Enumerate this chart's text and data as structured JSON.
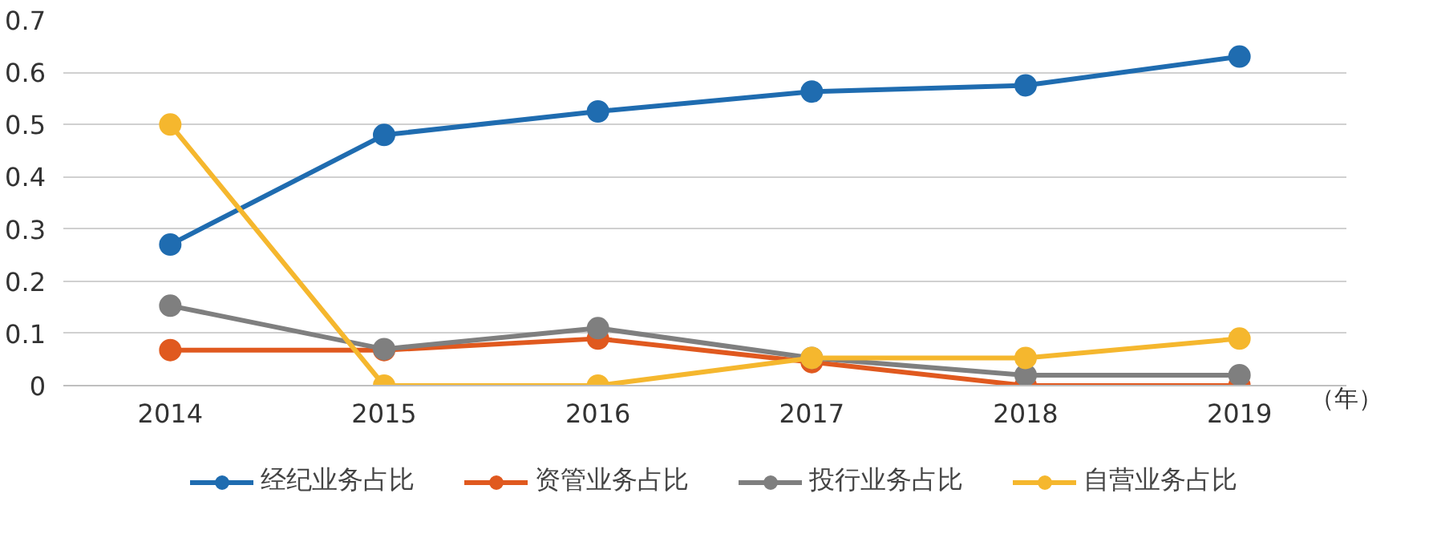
{
  "chart_data": {
    "type": "line",
    "categories": [
      "2014",
      "2015",
      "2016",
      "2017",
      "2018",
      "2019"
    ],
    "xlabel": "（年）",
    "series": [
      {
        "name": "经纪业务占比",
        "color": "#1f6cb0",
        "values": [
          0.27,
          0.48,
          0.525,
          0.563,
          0.575,
          0.63
        ]
      },
      {
        "name": "资管业务占比",
        "color": "#e0591f",
        "values": [
          0.068,
          0.068,
          0.09,
          0.045,
          0,
          0
        ]
      },
      {
        "name": "投行业务占比",
        "color": "#7f7f7f",
        "values": [
          0.153,
          0.07,
          0.11,
          0.053,
          0.02,
          0.02
        ]
      },
      {
        "name": "自营业务占比",
        "color": "#f5b72e",
        "values": [
          0.5,
          0,
          0,
          0.053,
          0.053,
          0.09
        ]
      }
    ],
    "ylim": [
      0,
      0.7
    ],
    "yticks": [
      0,
      0.1,
      0.2,
      0.3,
      0.4,
      0.5,
      0.6,
      0.7
    ],
    "grid": "y",
    "legend": "bottom",
    "marker": "circle",
    "line_style": "solid"
  }
}
